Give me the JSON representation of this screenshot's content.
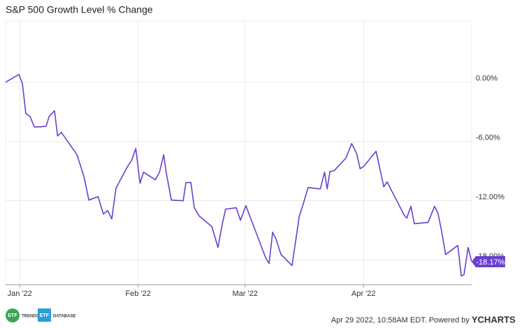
{
  "chart_data": {
    "type": "line",
    "title": "S&P 500 Growth Level % Change",
    "x": [
      -3.7,
      -0.2,
      0.7,
      1.6,
      2.7,
      3.8,
      5.5,
      6.9,
      7.7,
      9.1,
      9.9,
      10.9,
      15.0,
      16.8,
      18.1,
      20.5,
      21.9,
      23.0,
      24.1,
      25.2,
      28.2,
      29.3,
      30.4,
      31.5,
      32.4,
      35.5,
      36.6,
      37.7,
      38.4,
      39.7,
      42.8,
      43.5,
      44.8,
      45.7,
      47.0,
      50.3,
      51.9,
      53.0,
      53.9,
      56.7,
      57.8,
      59.2,
      64.4,
      65.3,
      66.2,
      67.1,
      68.4,
      71.3,
      73.2,
      74.1,
      75.5,
      78.7,
      79.8,
      80.5,
      81.2,
      82.3,
      85.4,
      86.9,
      88.2,
      89.1,
      90.0,
      93.3,
      95.3,
      96.2,
      97.3,
      100.6,
      101.3,
      102.4,
      103.3,
      106.9,
      108.6,
      109.5,
      110.4,
      111.5,
      114.7,
      115.6,
      116.3,
      117.4,
      118.3
    ],
    "series": [
      {
        "color": "#6a3fd0",
        "values": [
          0,
          0.78,
          -0.14,
          -3.18,
          -3.46,
          -4.52,
          -4.52,
          -4.45,
          -3.46,
          -2.89,
          -5.44,
          -5.08,
          -7.34,
          -9.53,
          -11.93,
          -11.58,
          -13.34,
          -12.99,
          -13.84,
          -10.73,
          -8.54,
          -7.91,
          -6.71,
          -10.24,
          -9.11,
          -9.88,
          -9.11,
          -7.34,
          -9.25,
          -11.93,
          -12.0,
          -10.16,
          -10.16,
          -12.71,
          -13.55,
          -14.61,
          -16.73,
          -14.4,
          -12.85,
          -12.71,
          -13.98,
          -12.49,
          -17.79,
          -18.35,
          -15.18,
          -15.88,
          -17.44,
          -18.56,
          -13.55,
          -12.49,
          -10.66,
          -10.8,
          -9.11,
          -10.8,
          -9.04,
          -8.96,
          -7.69,
          -6.21,
          -7.2,
          -8.75,
          -8.54,
          -6.99,
          -10.59,
          -10.09,
          -10.94,
          -13.41,
          -13.77,
          -12.57,
          -14.33,
          -14.19,
          -12.57,
          -13.27,
          -14.97,
          -17.44,
          -16.52,
          -19.62,
          -19.48,
          -16.73,
          -18.17
        ]
      }
    ],
    "end_label": {
      "value": -18.17,
      "label": "-18.17%"
    },
    "xlim": [
      -3.7,
      118.3
    ],
    "xticks": [
      {
        "value": 0,
        "label": "Jan '22"
      },
      {
        "value": 31,
        "label": "Feb '22"
      },
      {
        "value": 59,
        "label": "Mar '22"
      },
      {
        "value": 90,
        "label": "Apr '22"
      }
    ],
    "ylim": [
      -20.5,
      6.2
    ],
    "yticks": [
      {
        "value": 0,
        "label": "0.00%"
      },
      {
        "value": -6,
        "label": "-6.00%"
      },
      {
        "value": -12,
        "label": "-12.00%"
      },
      {
        "value": -18,
        "label": "-18.00%"
      }
    ],
    "grid": true
  },
  "footer": {
    "logo1_mark": "ETF",
    "logo1_text": "TRENDS",
    "logo2_mark": "ETF",
    "logo2_text": "DATABASE",
    "timestamp": "Apr 29 2022, 10:58AM EDT. Powered by",
    "brand": "YCHARTS"
  }
}
